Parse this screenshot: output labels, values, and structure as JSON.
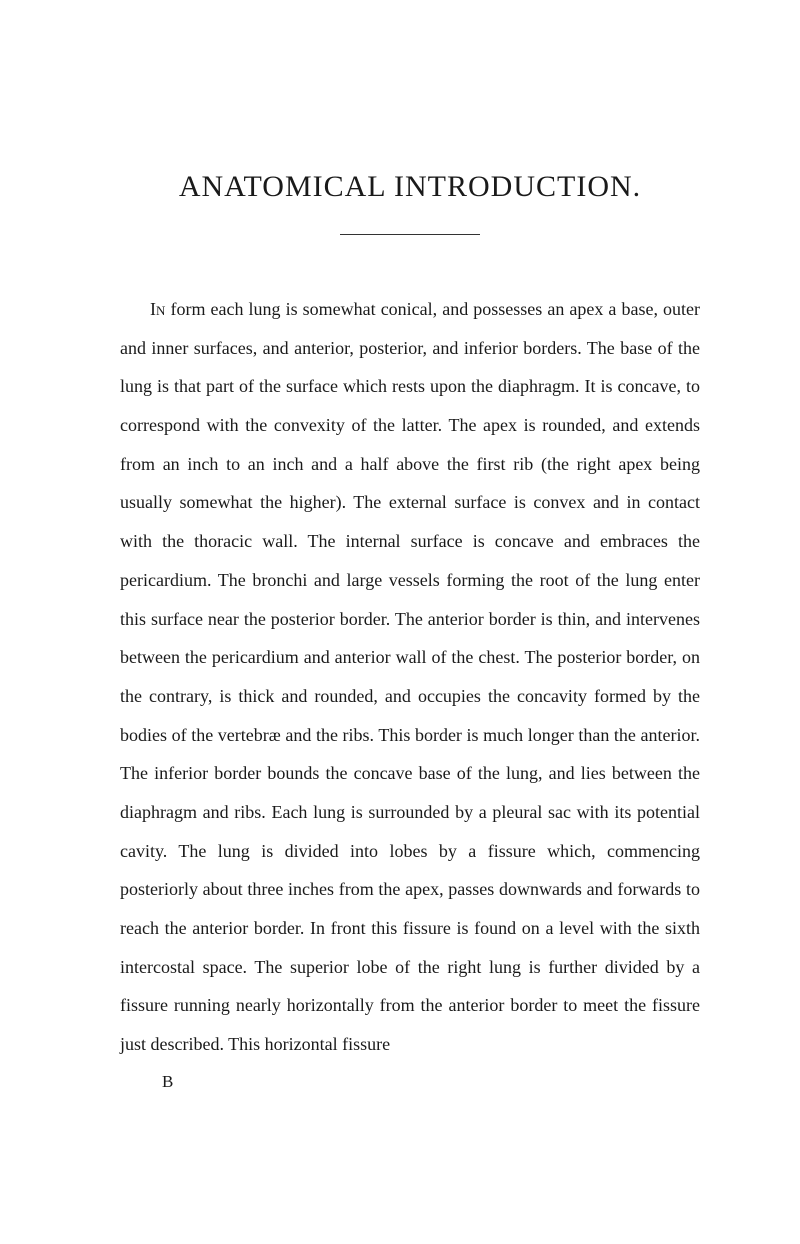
{
  "page": {
    "title": "ANATOMICAL INTRODUCTION.",
    "body_lead": "In",
    "body_text": " form each lung is somewhat conical, and possesses an apex a base, outer and inner surfaces, and anterior, posterior, and inferior borders. The base of the lung is that part of the surface which rests upon the diaphragm. It is concave, to correspond with the convexity of the latter. The apex is rounded, and extends from an inch to an inch and a half above the first rib (the right apex being usually somewhat the higher). The external surface is convex and in contact with the thoracic wall. The internal surface is concave and embraces the pericardium. The bronchi and large vessels forming the root of the lung enter this surface near the posterior border. The anterior border is thin, and intervenes between the pericardium and anterior wall of the chest. The posterior border, on the contrary, is thick and rounded, and occupies the concavity formed by the bodies of the vertebræ and the ribs. This border is much longer than the anterior. The inferior border bounds the concave base of the lung, and lies between the diaphragm and ribs. Each lung is surrounded by a pleural sac with its potential cavity. The lung is divided into lobes by a fissure which, commencing posteriorly about three inches from the apex, passes downwards and forwards to reach the anterior border. In front this fissure is found on a level with the sixth intercostal space. The superior lobe of the right lung is further divided by a fissure running nearly horizontally from the anterior border to meet the fissure just described. This horizontal fissure",
    "signature": "B"
  },
  "style": {
    "background_color": "#ffffff",
    "text_color": "#1a1a1a",
    "title_fontsize": 30,
    "body_fontsize": 18,
    "line_height": 2.15
  }
}
